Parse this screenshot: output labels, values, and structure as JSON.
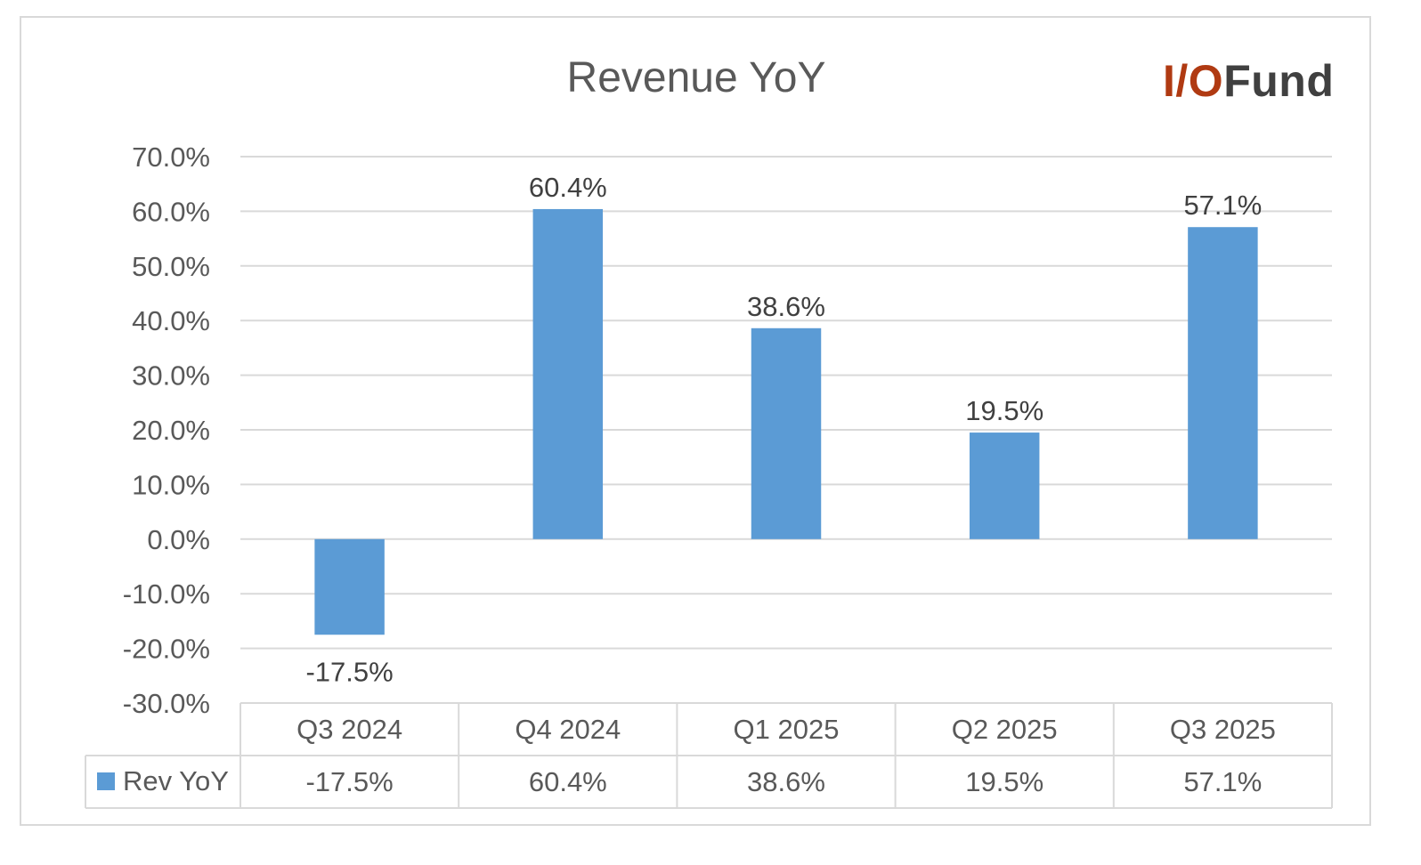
{
  "header": {
    "title": "Revenue YoY",
    "logo_part1": "I/O",
    "logo_part2": "Fund"
  },
  "chart_data": {
    "type": "bar",
    "title": "Revenue YoY",
    "categories": [
      "Q3 2024",
      "Q4 2024",
      "Q1 2025",
      "Q2 2025",
      "Q3 2025"
    ],
    "series": [
      {
        "name": "Rev YoY",
        "values": [
          -17.5,
          60.4,
          38.6,
          19.5,
          57.1
        ],
        "labels": [
          "-17.5%",
          "60.4%",
          "38.6%",
          "19.5%",
          "57.1%"
        ],
        "color": "#5b9bd5"
      }
    ],
    "ylim": [
      -30,
      70
    ],
    "y_ticks": [
      70,
      60,
      50,
      40,
      30,
      20,
      10,
      0,
      -10,
      -20,
      -30
    ],
    "y_tick_labels": [
      "70.0%",
      "60.0%",
      "50.0%",
      "40.0%",
      "30.0%",
      "20.0%",
      "10.0%",
      "0.0%",
      "-10.0%",
      "-20.0%",
      "-30.0%"
    ],
    "grid": true,
    "legend": "data-table",
    "colors": {
      "bar": "#5b9bd5",
      "grid": "#d9d9d9",
      "text": "#595959",
      "logo_accent": "#b03a12"
    }
  }
}
